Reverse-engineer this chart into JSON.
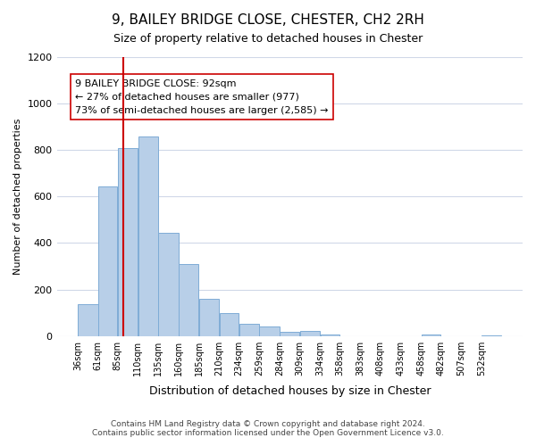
{
  "title": "9, BAILEY BRIDGE CLOSE, CHESTER, CH2 2RH",
  "subtitle": "Size of property relative to detached houses in Chester",
  "xlabel": "Distribution of detached houses by size in Chester",
  "ylabel": "Number of detached properties",
  "bar_labels": [
    "36sqm",
    "61sqm",
    "85sqm",
    "110sqm",
    "135sqm",
    "160sqm",
    "185sqm",
    "210sqm",
    "234sqm",
    "259sqm",
    "284sqm",
    "309sqm",
    "334sqm",
    "358sqm",
    "383sqm",
    "408sqm",
    "433sqm",
    "458sqm",
    "482sqm",
    "507sqm",
    "532sqm"
  ],
  "bar_values": [
    135,
    645,
    810,
    860,
    445,
    310,
    158,
    97,
    52,
    42,
    18,
    20,
    7,
    0,
    0,
    0,
    0,
    5,
    0,
    0,
    3
  ],
  "bar_color": "#b8cfe8",
  "bar_edge_color": "#7facd6",
  "property_line_x": 92,
  "property_line_color": "#cc0000",
  "annotation_title": "9 BAILEY BRIDGE CLOSE: 92sqm",
  "annotation_line1": "← 27% of detached houses are smaller (977)",
  "annotation_line2": "73% of semi-detached houses are larger (2,585) →",
  "annotation_box_color": "#ffffff",
  "annotation_box_edge_color": "#cc0000",
  "ylim": [
    0,
    1200
  ],
  "yticks": [
    0,
    200,
    400,
    600,
    800,
    1000,
    1200
  ],
  "footer_line1": "Contains HM Land Registry data © Crown copyright and database right 2024.",
  "footer_line2": "Contains public sector information licensed under the Open Government Licence v3.0.",
  "bg_color": "#ffffff",
  "grid_color": "#d0d8e8",
  "bin_width": 25
}
